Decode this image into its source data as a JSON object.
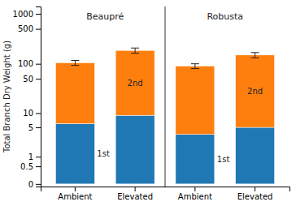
{
  "chart_data": {
    "type": "bar",
    "stacked": true,
    "ylabel": "Total Branch Dry Weight (g)",
    "categories": [
      "Ambient",
      "Elevated",
      "Ambient",
      "Elevated"
    ],
    "series": [
      {
        "name": "1st",
        "values": [
          6.0,
          9.0,
          3.5,
          5.0
        ]
      },
      {
        "name": "2nd",
        "values": [
          99.0,
          176.0,
          86.5,
          145.0
        ],
        "errors": [
          12.0,
          22.0,
          10.0,
          18.0
        ]
      }
    ],
    "annotations": [
      "Beaupré",
      "Robusta"
    ],
    "log": "y",
    "ylim": [
      -0.05,
      1400
    ],
    "yticks": [
      0,
      0.5,
      1,
      5,
      10,
      50,
      100,
      500,
      1000
    ],
    "grid": false
  }
}
